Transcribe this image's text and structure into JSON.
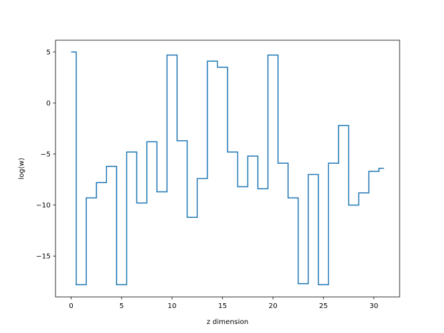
{
  "chart_data": {
    "type": "line",
    "drawstyle": "steps-mid",
    "title": "",
    "xlabel": "z dimension",
    "ylabel": "log(w)",
    "xlim": [
      -1.55,
      32.55
    ],
    "ylim": [
      -19.0,
      6.15
    ],
    "xticks": [
      0,
      5,
      10,
      15,
      20,
      25,
      30
    ],
    "yticks": [
      5,
      0,
      -5,
      -10,
      -15
    ],
    "ytick_labels": [
      "5",
      "0",
      "−5",
      "−10",
      "−15"
    ],
    "grid": false,
    "legend": "none",
    "line_color": "#1f77b4",
    "series": [
      {
        "x": [
          0,
          1,
          2,
          3,
          4,
          5,
          6,
          7,
          8,
          9,
          10,
          11,
          12,
          13,
          14,
          15,
          16,
          17,
          18,
          19,
          20,
          21,
          22,
          23,
          24,
          25,
          26,
          27,
          28,
          29,
          30,
          31
        ],
        "values": [
          5.0,
          -17.8,
          -9.3,
          -7.8,
          -6.2,
          -17.8,
          -4.8,
          -9.8,
          -3.8,
          -8.7,
          4.7,
          -3.7,
          -11.2,
          -7.4,
          4.1,
          3.5,
          -4.8,
          -8.2,
          -5.2,
          -8.4,
          4.7,
          -5.9,
          -9.3,
          -17.7,
          -7.0,
          -17.8,
          -5.9,
          -2.2,
          -10.0,
          -8.8,
          -6.7,
          -6.4
        ]
      }
    ]
  }
}
